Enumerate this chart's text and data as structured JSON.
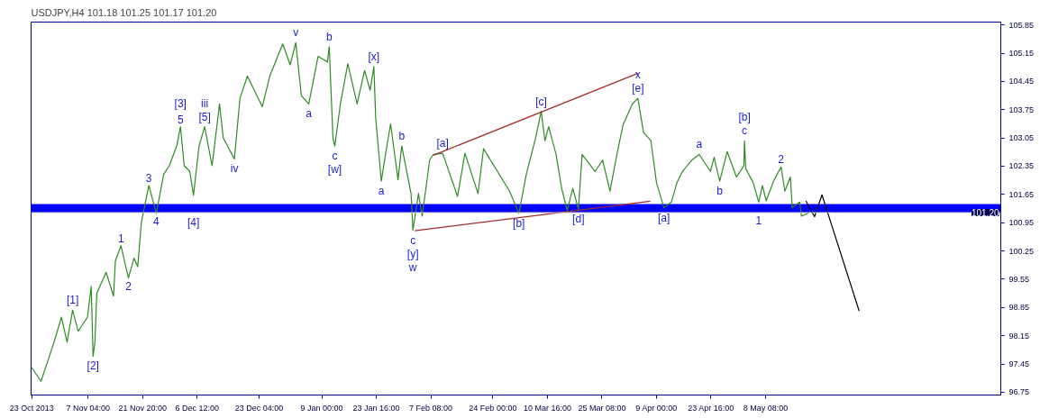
{
  "chart_data": {
    "type": "line",
    "title": "USDJPY,H4  101.18 101.25 101.17 101.20",
    "xlim": [
      "2013-10-22T20:00",
      "2014-07-10T14:00"
    ],
    "ylim": [
      96.68,
      105.92
    ],
    "xticks": [
      {
        "value": "2013-10-23T00:00",
        "label": "23 Oct 2013"
      },
      {
        "value": "2013-11-07T04:00",
        "label": "7 Nov 04:00"
      },
      {
        "value": "2013-11-21T20:00",
        "label": "21 Nov 20:00"
      },
      {
        "value": "2013-12-06T12:00",
        "label": "6 Dec 12:00"
      },
      {
        "value": "2013-12-23T04:00",
        "label": "23 Dec 04:00"
      },
      {
        "value": "2014-01-09T00:00",
        "label": "9 Jan 00:00"
      },
      {
        "value": "2014-01-23T16:00",
        "label": "23 Jan 16:00"
      },
      {
        "value": "2014-02-07T08:00",
        "label": "7 Feb 08:00"
      },
      {
        "value": "2014-02-24T00:00",
        "label": "24 Feb 00:00"
      },
      {
        "value": "2014-03-10T16:00",
        "label": "10 Mar 16:00"
      },
      {
        "value": "2014-03-25T08:00",
        "label": "25 Mar 08:00"
      },
      {
        "value": "2014-04-09T00:00",
        "label": "9 Apr 00:00"
      },
      {
        "value": "2014-04-23T16:00",
        "label": "23 Apr 16:00"
      },
      {
        "value": "2014-05-08T08:00",
        "label": "8 May 08:00"
      }
    ],
    "yticks": [
      96.75,
      97.45,
      98.15,
      98.85,
      99.55,
      100.25,
      100.95,
      101.65,
      102.35,
      103.05,
      103.75,
      104.45,
      105.15,
      105.85
    ],
    "grid": false,
    "ref_lines": [
      {
        "axis": "y",
        "value": 101.2,
        "label": "101.20",
        "color": "#c8c8c8"
      }
    ],
    "bands": [
      {
        "axis": "y",
        "from": 101.2,
        "to": 101.41,
        "color": "#0000ff"
      }
    ],
    "series": [
      {
        "color": "#2e8b22",
        "x": [
          "2013-10-23",
          "2013-10-25T12:00",
          "2013-10-28",
          "2013-10-29",
          "2013-10-31",
          "2013-11-01T12:00",
          "2013-11-03",
          "2013-11-04T12:00",
          "2013-11-07",
          "2013-11-08",
          "2013-11-08T12:00",
          "2013-11-09",
          "2013-11-09T12:00",
          "2013-11-12",
          "2013-11-14",
          "2013-11-14T12:00",
          "2013-11-16",
          "2013-11-18",
          "2013-11-19T12:00",
          "2013-11-20T12:00",
          "2013-11-21T12:00",
          "2013-11-23T12:00",
          "2013-11-25T12:00",
          "2013-11-27T12:00",
          "2013-11-29",
          "2013-12-01",
          "2013-12-02",
          "2013-12-03",
          "2013-12-04T12:00",
          "2013-12-05T12:00",
          "2013-12-07",
          "2013-12-08T12:00",
          "2013-12-10T12:00",
          "2013-12-12T12:00",
          "2013-12-13T12:00",
          "2013-12-16T12:00",
          "2013-12-18",
          "2013-12-20",
          "2013-12-24",
          "2013-12-26",
          "2013-12-29T12:00",
          "2013-12-31T12:00",
          "2014-01-02",
          "2014-01-03T12:00",
          "2014-01-05T12:00",
          "2014-01-08",
          "2014-01-10T12:00",
          "2014-01-11",
          "2014-01-12",
          "2014-01-12T12:00",
          "2014-01-14",
          "2014-01-16",
          "2014-01-18T12:00",
          "2014-01-20T12:00",
          "2014-01-22",
          "2014-01-23",
          "2014-01-23T12:00",
          "2014-01-25",
          "2014-01-26T12:00",
          "2014-01-27T12:00",
          "2014-01-29T12:00",
          "2014-01-30T12:00",
          "2014-02-02",
          "2014-02-02T12:00",
          "2014-02-04",
          "2014-02-05",
          "2014-02-07",
          "2014-02-08",
          "2014-02-10T12:00",
          "2014-02-14T12:00",
          "2014-02-16T12:00",
          "2014-02-20",
          "2014-02-21T12:00",
          "2014-02-28T12:00",
          "2014-03-03",
          "2014-03-05",
          "2014-03-07T12:00",
          "2014-03-09",
          "2014-03-10",
          "2014-03-11",
          "2014-03-13",
          "2014-03-14T12:00",
          "2014-03-16",
          "2014-03-17T12:00",
          "2014-03-19",
          "2014-03-20",
          "2014-03-23T12:00",
          "2014-03-25T12:00",
          "2014-03-27T12:00",
          "2014-03-29T12:00",
          "2014-03-31",
          "2014-04-02T12:00",
          "2014-04-04",
          "2014-04-05T12:00",
          "2014-04-07T12:00",
          "2014-04-09",
          "2014-04-11",
          "2014-04-13",
          "2014-04-14T12:00",
          "2014-04-16",
          "2014-04-18T12:00",
          "2014-04-20T12:00",
          "2014-04-23T12:00",
          "2014-04-24T12:00",
          "2014-04-26",
          "2014-04-28",
          "2014-04-30T12:00",
          "2014-05-02T12:00",
          "2014-05-02T16:00",
          "2014-05-03",
          "2014-05-05",
          "2014-05-06T12:00",
          "2014-05-07T12:00",
          "2014-05-08T12:00",
          "2014-05-10T12:00",
          "2014-05-12T12:00",
          "2014-05-13T12:00",
          "2014-05-15",
          "2014-05-15T12:00",
          "2014-05-17T12:00",
          "2014-05-18",
          "2014-05-20"
        ],
        "values": [
          97.36,
          97.02,
          97.71,
          97.99,
          98.61,
          97.99,
          98.78,
          98.26,
          98.61,
          99.37,
          97.64,
          97.99,
          99.2,
          99.72,
          99.13,
          100.0,
          100.38,
          99.58,
          100.07,
          99.86,
          100.97,
          101.87,
          101.18,
          102.15,
          102.36,
          102.85,
          103.33,
          102.36,
          102.22,
          101.63,
          102.85,
          103.33,
          102.36,
          103.89,
          103.05,
          102.53,
          104.03,
          104.58,
          103.82,
          104.58,
          105.38,
          104.86,
          105.41,
          104.1,
          103.89,
          105.07,
          104.93,
          105.31,
          103.05,
          102.85,
          103.89,
          104.89,
          103.89,
          104.72,
          104.23,
          104.82,
          103.54,
          101.98,
          102.85,
          103.4,
          102.01,
          102.85,
          101.67,
          100.76,
          101.67,
          101.11,
          102.5,
          102.64,
          102.67,
          101.6,
          102.67,
          101.67,
          102.78,
          101.73,
          101.18,
          102.15,
          103.05,
          103.71,
          102.98,
          103.33,
          102.64,
          101.8,
          101.25,
          101.8,
          101.28,
          102.64,
          102.22,
          102.5,
          101.73,
          102.71,
          103.37,
          103.89,
          104.03,
          103.19,
          102.98,
          101.94,
          101.32,
          101.46,
          101.94,
          102.22,
          102.5,
          102.64,
          102.22,
          102.57,
          101.98,
          102.71,
          102.08,
          102.36,
          102.98,
          102.29,
          101.94,
          101.46,
          101.87,
          101.49,
          101.98,
          102.33,
          101.73,
          102.08,
          101.32,
          101.46,
          101.11,
          101.2
        ]
      },
      {
        "color": "#a52a2a",
        "x": [
          "2014-02-08",
          "2014-04-04"
        ],
        "values": [
          102.62,
          104.65
        ]
      },
      {
        "color": "#a52a2a",
        "x": [
          "2014-02-03",
          "2014-04-07T08:00"
        ],
        "values": [
          100.75,
          101.48
        ]
      },
      {
        "color": "#000000",
        "x": [
          "2014-05-19T04:00",
          "2014-05-21T12:00",
          "2014-05-23T12:00",
          "2014-06-02T12:00"
        ],
        "values": [
          101.49,
          101.1,
          101.64,
          98.76
        ]
      }
    ],
    "annotations": [
      {
        "text": "[1]",
        "x": "2013-11-03",
        "y": 98.78
      },
      {
        "text": "[2]",
        "x": "2013-11-08T12:00",
        "y": 97.64
      },
      {
        "text": "1",
        "x": "2013-11-16",
        "y": 100.38
      },
      {
        "text": "2",
        "x": "2013-11-18",
        "y": 99.58
      },
      {
        "text": "3",
        "x": "2013-11-23T12:00",
        "y": 101.87
      },
      {
        "text": "4",
        "x": "2013-11-25T12:00",
        "y": 101.18
      },
      {
        "text": "5",
        "x": "2013-12-02",
        "y": 103.33
      },
      {
        "text": "[3]",
        "x": "2013-12-02",
        "y": 103.33
      },
      {
        "text": "[4]",
        "x": "2013-12-05T12:00",
        "y": 101.2
      },
      {
        "text": "[5]",
        "x": "2013-12-08T12:00",
        "y": 103.33
      },
      {
        "text": "iii",
        "x": "2013-12-08T12:00",
        "y": 103.33
      },
      {
        "text": "iv",
        "x": "2013-12-16T12:00",
        "y": 102.53
      },
      {
        "text": "v",
        "x": "2014-01-02",
        "y": 105.41
      },
      {
        "text": "a",
        "x": "2014-01-05T12:00",
        "y": 103.89
      },
      {
        "text": "b",
        "x": "2014-01-11",
        "y": 105.31
      },
      {
        "text": "c",
        "x": "2014-01-12T12:00",
        "y": 102.85
      },
      {
        "text": "[w]",
        "x": "2014-01-12T12:00",
        "y": 102.85
      },
      {
        "text": "[x]",
        "x": "2014-01-23",
        "y": 104.82
      },
      {
        "text": "a",
        "x": "2014-01-25",
        "y": 101.98
      },
      {
        "text": "b",
        "x": "2014-01-30T12:00",
        "y": 102.85
      },
      {
        "text": "c",
        "x": "2014-02-02T12:00",
        "y": 100.76
      },
      {
        "text": "[y]",
        "x": "2014-02-02T12:00",
        "y": 100.76
      },
      {
        "text": "w",
        "x": "2014-02-02T12:00",
        "y": 100.76
      },
      {
        "text": "[a]",
        "x": "2014-02-10T12:00",
        "y": 102.67
      },
      {
        "text": "[b]",
        "x": "2014-03-03",
        "y": 101.18
      },
      {
        "text": "[c]",
        "x": "2014-03-09",
        "y": 103.71
      },
      {
        "text": "[d]",
        "x": "2014-03-19",
        "y": 101.28
      },
      {
        "text": "[e]",
        "x": "2014-04-04",
        "y": 104.03
      },
      {
        "text": "x",
        "x": "2014-04-04",
        "y": 104.03
      },
      {
        "text": "[a]",
        "x": "2014-04-11",
        "y": 101.32
      },
      {
        "text": "a",
        "x": "2014-04-20T12:00",
        "y": 102.64
      },
      {
        "text": "b",
        "x": "2014-04-26",
        "y": 101.98
      },
      {
        "text": "c",
        "x": "2014-05-02T16:00",
        "y": 102.98
      },
      {
        "text": "[b]",
        "x": "2014-05-02T16:00",
        "y": 102.98
      },
      {
        "text": "1",
        "x": "2014-05-06T12:00",
        "y": 101.2
      },
      {
        "text": "2",
        "x": "2014-05-12T12:00",
        "y": 102.33
      }
    ]
  }
}
